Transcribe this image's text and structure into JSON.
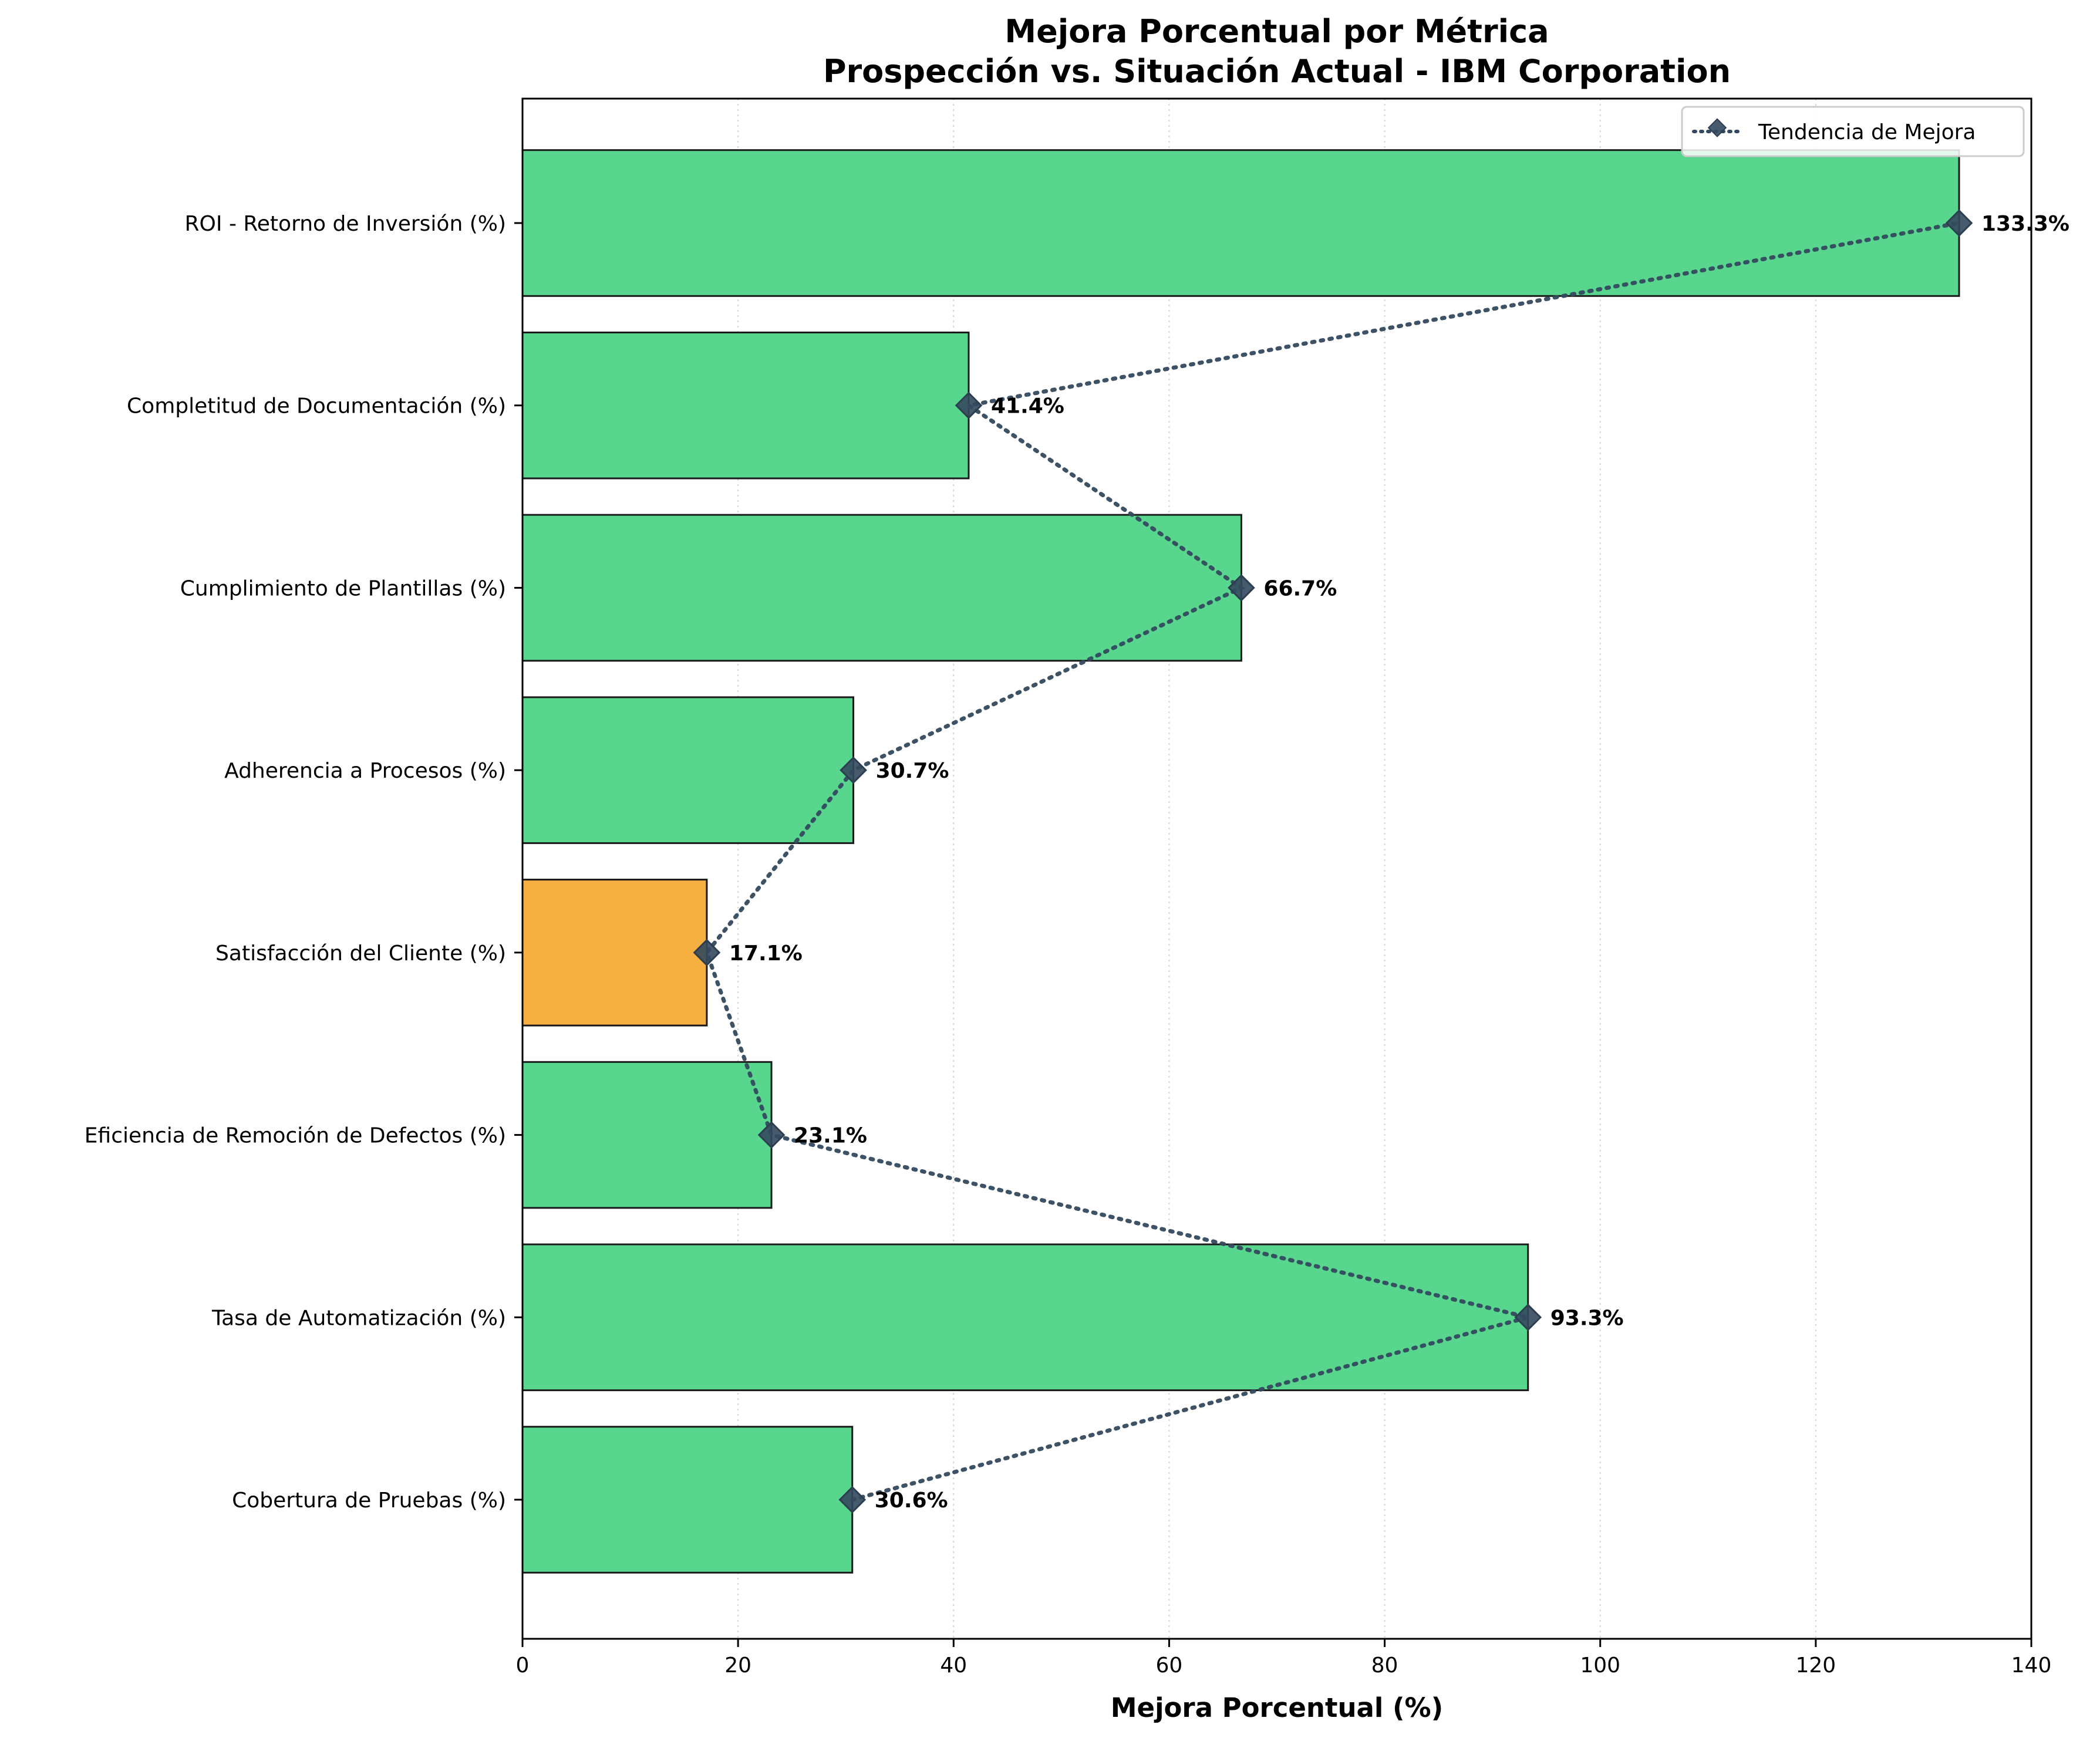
{
  "chart_data": {
    "type": "bar",
    "orientation": "horizontal",
    "title_line1": "Mejora Porcentual por Métrica",
    "title_line2": "Prospección vs. Situación Actual - IBM Corporation",
    "xlabel": "Mejora Porcentual (%)",
    "ylabel": "",
    "xlim": [
      0,
      140
    ],
    "xticks": [
      0,
      20,
      40,
      60,
      80,
      100,
      120,
      140
    ],
    "grid": "vertical dotted",
    "categories": [
      "Cobertura de Pruebas (%)",
      "Tasa de Automatización (%)",
      "Eficiencia de Remoción de Defectos (%)",
      "Satisfacción del Cliente (%)",
      "Adherencia a Procesos (%)",
      "Cumplimiento de Plantillas (%)",
      "Completitud de Documentación (%)",
      "ROI - Retorno de Inversión (%)"
    ],
    "values": [
      30.6,
      93.3,
      23.1,
      17.1,
      30.7,
      66.7,
      41.4,
      133.3
    ],
    "value_labels": [
      "30.6%",
      "93.3%",
      "23.1%",
      "17.1%",
      "30.7%",
      "66.7%",
      "41.4%",
      "133.3%"
    ],
    "bar_colors": [
      "#58d68d",
      "#58d68d",
      "#58d68d",
      "#f5b041",
      "#58d68d",
      "#58d68d",
      "#58d68d",
      "#58d68d"
    ],
    "trend_line": {
      "name": "Tendencia de Mejora",
      "color": "#34495e",
      "marker": "diamond",
      "style": "dotted"
    },
    "legend": {
      "position": "top-right",
      "entries": [
        "Tendencia de Mejora"
      ]
    }
  }
}
